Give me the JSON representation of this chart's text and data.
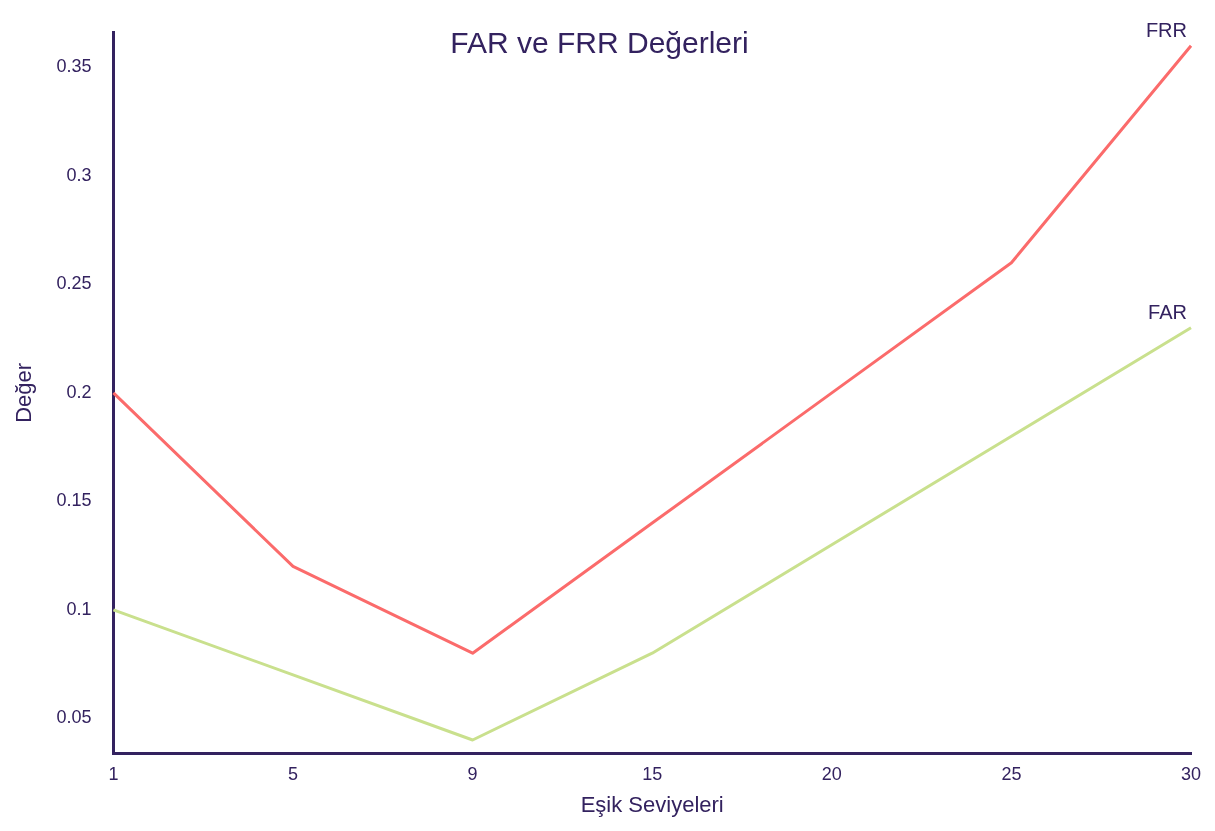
{
  "chart_data": {
    "type": "line",
    "title": "FAR ve FRR Değerleri",
    "xlabel": "Eşik Seviyeleri",
    "ylabel": "Değer",
    "categories": [
      "1",
      "5",
      "9",
      "15",
      "20",
      "25",
      "30"
    ],
    "series": [
      {
        "name": "FRR",
        "color": "#fb6b6b",
        "values": [
          0.2,
          0.12,
          0.08,
          0.14,
          0.2,
          0.26,
          0.36
        ]
      },
      {
        "name": "FAR",
        "color": "#c9e08d",
        "values": [
          0.1,
          0.07,
          0.04,
          0.08,
          0.13,
          0.18,
          0.23
        ]
      }
    ],
    "ylim": [
      0.034,
      0.366
    ],
    "yticks": [
      0.05,
      0.1,
      0.15,
      0.2,
      0.25,
      0.3,
      0.35
    ],
    "grid": false,
    "legend": false,
    "marker": "none",
    "line_style": "solid"
  }
}
